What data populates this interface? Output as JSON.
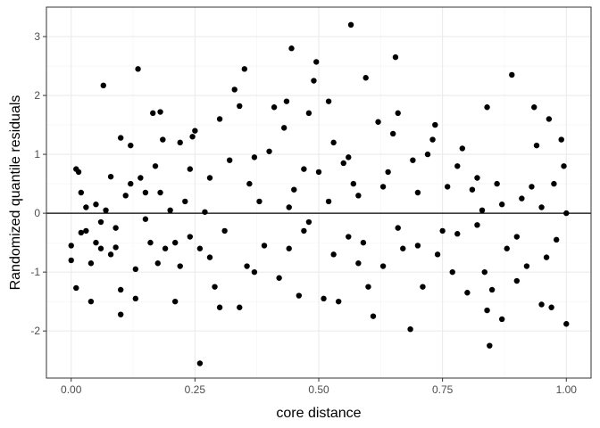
{
  "chart_data": {
    "type": "scatter",
    "xlabel": "core distance",
    "ylabel": "Randomized quantile residuals",
    "xlim": [
      -0.05,
      1.05
    ],
    "ylim": [
      -2.8,
      3.5
    ],
    "xticks": [
      {
        "value": 0,
        "label": "0.00"
      },
      {
        "value": 0.25,
        "label": "0.25"
      },
      {
        "value": 0.5,
        "label": "0.50"
      },
      {
        "value": 0.75,
        "label": "0.75"
      },
      {
        "value": 1,
        "label": "1.00"
      }
    ],
    "yticks": [
      -2,
      -1,
      0,
      1,
      2,
      3
    ],
    "grid": true,
    "reference_line": 0,
    "color": "#000000",
    "x": [
      0.0,
      0.0,
      0.01,
      0.01,
      0.015,
      0.02,
      0.02,
      0.03,
      0.03,
      0.04,
      0.04,
      0.05,
      0.06,
      0.06,
      0.065,
      0.07,
      0.08,
      0.08,
      0.09,
      0.1,
      0.1,
      0.1,
      0.11,
      0.12,
      0.12,
      0.13,
      0.135,
      0.13,
      0.14,
      0.15,
      0.16,
      0.165,
      0.17,
      0.175,
      0.18,
      0.18,
      0.185,
      0.19,
      0.2,
      0.21,
      0.21,
      0.22,
      0.23,
      0.24,
      0.245,
      0.25,
      0.26,
      0.26,
      0.27,
      0.28,
      0.29,
      0.3,
      0.3,
      0.32,
      0.33,
      0.34,
      0.34,
      0.35,
      0.355,
      0.36,
      0.37,
      0.38,
      0.4,
      0.41,
      0.42,
      0.43,
      0.435,
      0.44,
      0.445,
      0.45,
      0.46,
      0.47,
      0.48,
      0.49,
      0.495,
      0.5,
      0.51,
      0.52,
      0.52,
      0.53,
      0.54,
      0.55,
      0.56,
      0.565,
      0.57,
      0.59,
      0.595,
      0.6,
      0.61,
      0.62,
      0.63,
      0.64,
      0.65,
      0.655,
      0.66,
      0.67,
      0.685,
      0.69,
      0.7,
      0.71,
      0.72,
      0.73,
      0.735,
      0.75,
      0.76,
      0.77,
      0.78,
      0.79,
      0.8,
      0.81,
      0.82,
      0.83,
      0.835,
      0.84,
      0.84,
      0.845,
      0.85,
      0.86,
      0.87,
      0.88,
      0.89,
      0.9,
      0.91,
      0.92,
      0.93,
      0.935,
      0.94,
      0.95,
      0.96,
      0.965,
      0.97,
      0.975,
      0.98,
      0.99,
      0.995,
      1.0,
      1.0,
      0.05,
      0.09,
      0.15,
      0.22,
      0.28,
      0.31,
      0.37,
      0.39,
      0.44,
      0.47,
      0.53,
      0.56,
      0.58,
      0.63,
      0.66,
      0.7,
      0.74,
      0.78,
      0.82,
      0.87,
      0.9,
      0.95,
      0.58,
      0.48,
      0.24
    ],
    "values": [
      -0.55,
      -0.8,
      -1.27,
      0.75,
      0.7,
      0.35,
      -0.33,
      0.1,
      -0.3,
      -1.5,
      -0.85,
      -0.5,
      -0.6,
      -0.15,
      2.17,
      0.05,
      0.62,
      -0.7,
      -0.58,
      1.28,
      -1.72,
      -1.3,
      0.3,
      1.15,
      0.5,
      -0.95,
      2.45,
      -1.45,
      0.6,
      -0.1,
      -0.5,
      1.7,
      0.8,
      -0.85,
      1.72,
      0.35,
      1.25,
      -0.6,
      0.05,
      -1.5,
      -0.5,
      1.2,
      0.2,
      -0.4,
      1.3,
      1.4,
      -0.6,
      -2.55,
      0.02,
      -0.75,
      -1.25,
      1.6,
      -1.6,
      0.9,
      2.1,
      1.82,
      -1.6,
      2.45,
      -0.9,
      0.5,
      -1.0,
      0.2,
      1.05,
      1.8,
      -1.1,
      1.45,
      1.9,
      -0.6,
      2.8,
      0.4,
      -1.4,
      -0.3,
      1.7,
      2.25,
      2.57,
      0.7,
      -1.45,
      1.9,
      0.2,
      1.2,
      -1.5,
      0.85,
      -0.4,
      3.2,
      0.5,
      -0.5,
      2.3,
      -1.25,
      -1.75,
      1.55,
      -0.9,
      0.7,
      1.35,
      2.65,
      1.7,
      -0.6,
      -1.97,
      0.9,
      -0.55,
      -1.25,
      1.0,
      1.25,
      1.5,
      -0.3,
      0.45,
      -1.0,
      0.8,
      1.1,
      -1.35,
      0.4,
      -0.2,
      0.05,
      -1.0,
      1.8,
      -1.65,
      -2.25,
      -1.3,
      0.5,
      -1.8,
      -0.6,
      2.35,
      -1.15,
      0.25,
      -0.9,
      0.45,
      1.8,
      1.15,
      -1.55,
      -0.75,
      1.6,
      -1.6,
      0.5,
      -0.45,
      1.25,
      0.8,
      -1.88,
      0.0,
      0.15,
      -0.25,
      0.35,
      -0.9,
      0.6,
      -0.3,
      0.95,
      -0.55,
      0.1,
      0.75,
      -0.7,
      0.95,
      0.3,
      0.45,
      -0.25,
      0.35,
      -0.7,
      -0.35,
      0.6,
      0.15,
      -0.4,
      0.1,
      -0.85,
      -0.15,
      0.75
    ]
  }
}
